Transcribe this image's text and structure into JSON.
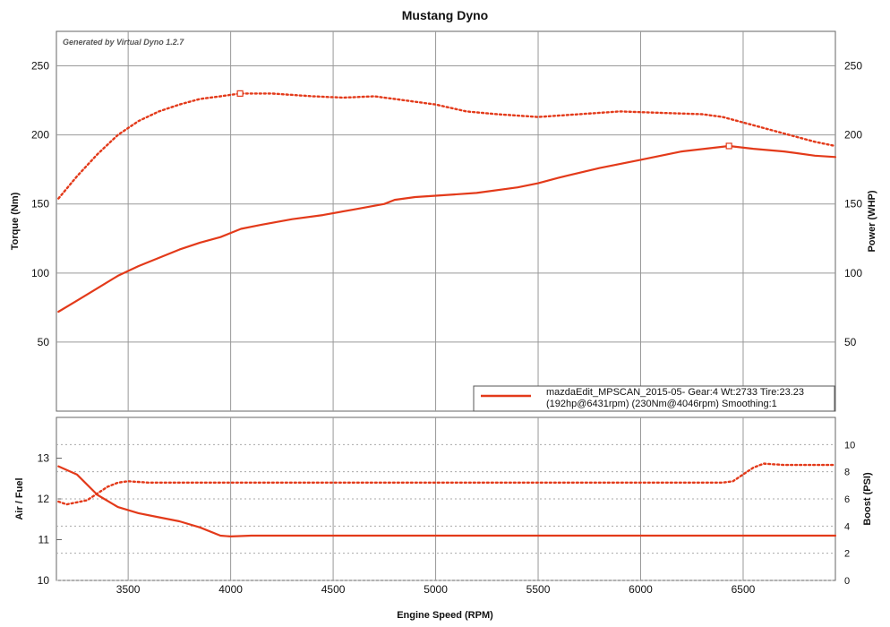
{
  "chart_data": [
    {
      "type": "line",
      "title": "Mustang Dyno",
      "watermark": "Generated by Virtual Dyno 1.2.7",
      "xlabel": "Engine Speed (RPM)",
      "ylabel": "Torque (Nm)",
      "y2label": "Power (WHP)",
      "xlim": [
        3150,
        6950
      ],
      "ylim": [
        0,
        275
      ],
      "y2lim": [
        0,
        275
      ],
      "x_ticks": [
        3500,
        4000,
        4500,
        5000,
        5500,
        6000,
        6500
      ],
      "y_ticks": [
        50,
        100,
        150,
        200,
        250
      ],
      "y2_ticks": [
        50,
        100,
        150,
        200,
        250
      ],
      "grid": true,
      "legend": {
        "placement": "bottom-right",
        "line1": "mazdaEdit_MPSCAN_2015-05- Gear:4 Wt:2733 Tire:23.23",
        "line2": "(192hp@6431rpm) (230Nm@4046rpm) Smoothing:1"
      },
      "series": [
        {
          "style": "solid",
          "axis": "right",
          "color": "#e33a1a",
          "x": [
            3160,
            3250,
            3350,
            3450,
            3550,
            3650,
            3750,
            3850,
            3950,
            4000,
            4050,
            4150,
            4300,
            4450,
            4600,
            4750,
            4800,
            4900,
            5000,
            5200,
            5400,
            5500,
            5600,
            5800,
            6000,
            6200,
            6431,
            6550,
            6700,
            6850,
            6950
          ],
          "y": [
            72,
            80,
            89,
            98,
            105,
            111,
            117,
            122,
            126,
            129,
            132,
            135,
            139,
            142,
            146,
            150,
            153,
            155,
            156,
            158,
            162,
            165,
            169,
            176,
            182,
            188,
            192,
            190,
            188,
            185,
            184
          ]
        },
        {
          "style": "dotted",
          "axis": "left",
          "color": "#e33a1a",
          "x": [
            3160,
            3250,
            3350,
            3450,
            3550,
            3650,
            3750,
            3850,
            3950,
            4046,
            4200,
            4400,
            4550,
            4700,
            4800,
            5000,
            5150,
            5300,
            5500,
            5700,
            5900,
            6100,
            6300,
            6400,
            6550,
            6700,
            6850,
            6950
          ],
          "y": [
            154,
            170,
            186,
            200,
            210,
            217,
            222,
            226,
            228,
            230,
            230,
            228,
            227,
            228,
            226,
            222,
            217,
            215,
            213,
            215,
            217,
            216,
            215,
            213,
            207,
            201,
            195,
            192
          ]
        }
      ],
      "markers": [
        {
          "series": 0,
          "x": 6431,
          "y": 192
        },
        {
          "series": 1,
          "x": 4046,
          "y": 230
        }
      ]
    },
    {
      "type": "line",
      "xlabel": "Engine Speed (RPM)",
      "ylabel": "Air / Fuel",
      "y2label": "Boost (PSI)",
      "xlim": [
        3150,
        6950
      ],
      "ylim": [
        10,
        14
      ],
      "y2lim": [
        0,
        12
      ],
      "x_ticks": [
        3500,
        4000,
        4500,
        5000,
        5500,
        6000,
        6500
      ],
      "y_ticks": [
        10,
        11,
        12,
        13
      ],
      "y2_ticks": [
        0,
        2,
        4,
        6,
        8,
        10
      ],
      "grid": true,
      "series": [
        {
          "style": "solid",
          "axis": "left",
          "color": "#e33a1a",
          "x": [
            3160,
            3250,
            3350,
            3450,
            3550,
            3650,
            3750,
            3850,
            3950,
            4000,
            4100,
            4500,
            5000,
            5500,
            6000,
            6500,
            6950
          ],
          "y": [
            12.8,
            12.6,
            12.1,
            11.8,
            11.65,
            11.55,
            11.45,
            11.3,
            11.1,
            11.08,
            11.1,
            11.1,
            11.1,
            11.1,
            11.1,
            11.1,
            11.1
          ]
        },
        {
          "style": "dotted",
          "axis": "right",
          "color": "#e33a1a",
          "x": [
            3160,
            3200,
            3300,
            3400,
            3450,
            3500,
            3600,
            4000,
            4500,
            5000,
            5500,
            6000,
            6400,
            6450,
            6550,
            6600,
            6700,
            6950
          ],
          "y": [
            5.8,
            5.6,
            5.9,
            6.9,
            7.2,
            7.3,
            7.2,
            7.2,
            7.2,
            7.2,
            7.2,
            7.2,
            7.2,
            7.3,
            8.3,
            8.6,
            8.5,
            8.5
          ]
        }
      ]
    }
  ]
}
